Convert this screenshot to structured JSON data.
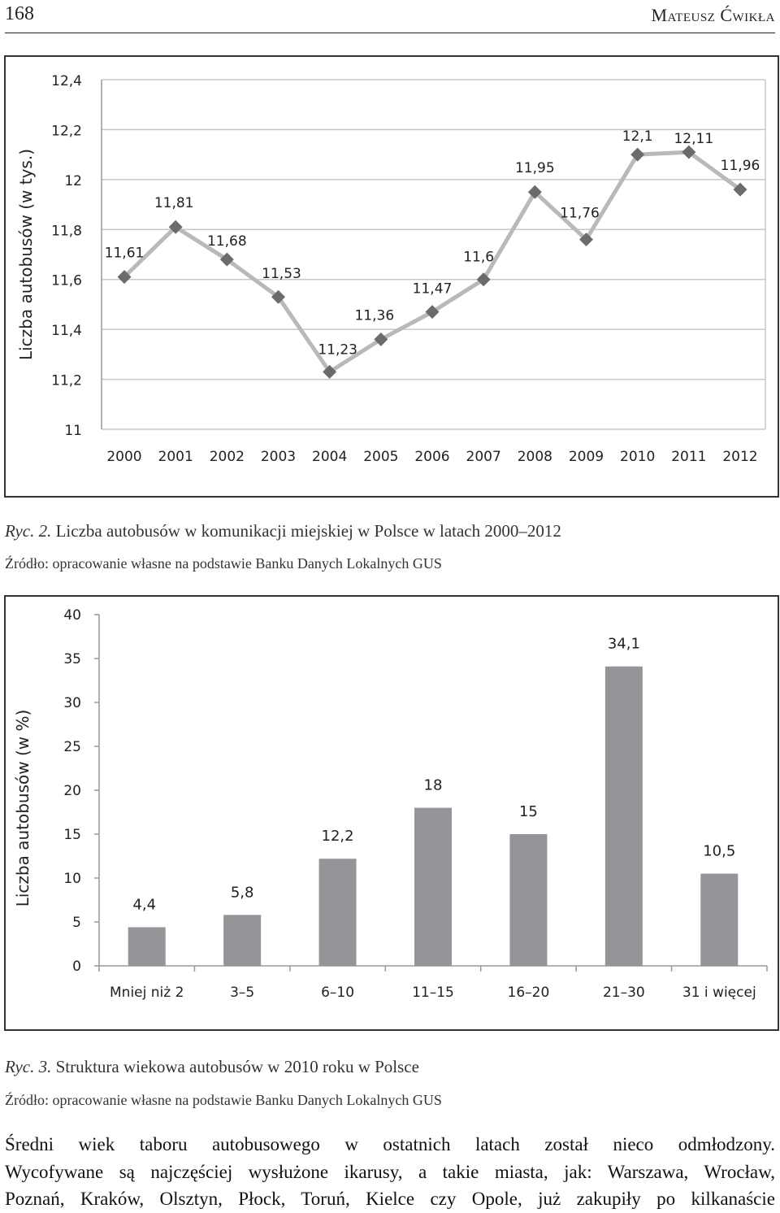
{
  "header": {
    "page_number": "168",
    "author": "Mateusz Ćwikła"
  },
  "figure2": {
    "caption_prefix": "Ryc. 2.",
    "caption_text": "Liczba autobusów w komunikacji miejskiej w Polsce w latach 2000–2012",
    "source": "Źródło: opracowanie własne na podstawie Banku Danych Lokalnych GUS"
  },
  "figure3": {
    "caption_prefix": "Ryc. 3.",
    "caption_text": "Struktura wiekowa autobusów w 2010 roku w Polsce",
    "source": "Źródło: opracowanie własne na podstawie Banku Danych Lokalnych GUS"
  },
  "paragraph": {
    "lines": [
      "Średni wiek taboru autobusowego w ostatnich latach został nieco odmłodzony.",
      "Wycofywane są najczęściej wysłużone ikarusy, a takie miasta, jak: Warszawa, Wrocław,",
      "Poznań, Kraków, Olsztyn, Płock, Toruń, Kielce czy Opole, już zakupiły po kilkanaście"
    ]
  },
  "chart_data": [
    {
      "type": "line",
      "title": "",
      "ylabel": "Liczba autobusów (w tys.)",
      "xlabel": "",
      "ylim": [
        11,
        12.4
      ],
      "yticks": [
        "11",
        "11,2",
        "11,4",
        "11,6",
        "11,8",
        "12",
        "12,2",
        "12,4"
      ],
      "x": [
        "2000",
        "2001",
        "2002",
        "2003",
        "2004",
        "2005",
        "2006",
        "2007",
        "2008",
        "2009",
        "2010",
        "2011",
        "2012"
      ],
      "values": [
        11.61,
        11.81,
        11.68,
        11.53,
        11.23,
        11.36,
        11.47,
        11.6,
        11.95,
        11.76,
        12.1,
        12.11,
        11.96
      ],
      "labels": [
        "11,61",
        "11,81",
        "11,68",
        "11,53",
        "11,23",
        "11,36",
        "11,47",
        "11,6",
        "11,95",
        "11,76",
        "12,1",
        "12,11",
        "11,96"
      ],
      "grid": true,
      "colors": {
        "line": "#b9b9b9",
        "marker": "#6b6b6b",
        "grid": "#c8c8c8"
      }
    },
    {
      "type": "bar",
      "title": "",
      "ylabel": "Liczba autobusów (w %)",
      "xlabel": "",
      "ylim": [
        0,
        40
      ],
      "yticks": [
        "0",
        "5",
        "10",
        "15",
        "20",
        "25",
        "30",
        "35",
        "40"
      ],
      "categories": [
        "Mniej niż 2",
        "3–5",
        "6–10",
        "11–15",
        "16–20",
        "21–30",
        "31 i więcej"
      ],
      "values": [
        4.4,
        5.8,
        12.2,
        18,
        15,
        34.1,
        10.5
      ],
      "labels": [
        "4,4",
        "5,8",
        "12,2",
        "18",
        "15",
        "34,1",
        "10,5"
      ],
      "grid": false,
      "colors": {
        "bar": "#939598"
      }
    }
  ]
}
